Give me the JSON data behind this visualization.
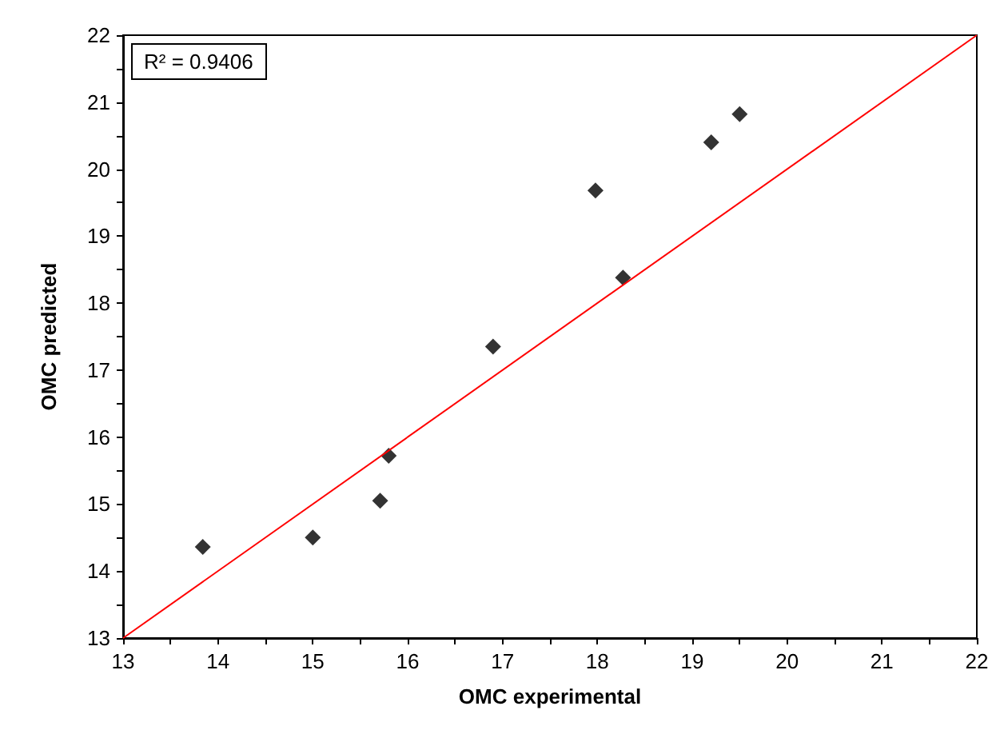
{
  "chart_data": {
    "type": "scatter",
    "xlabel": "OMC experimental",
    "ylabel": "OMC predicted",
    "annotations": [
      "R² = 0.9406"
    ],
    "xlim": [
      13,
      22
    ],
    "xticks": [
      13,
      14,
      15,
      16,
      17,
      18,
      19,
      20,
      21,
      22
    ],
    "ylim": [
      13,
      22
    ],
    "yticks": [
      13,
      14,
      15,
      16,
      17,
      18,
      19,
      20,
      21,
      22
    ],
    "grid": false,
    "marker": "diamond",
    "series": [
      {
        "color": "#000000",
        "x": [
          13.84,
          15.0,
          15.71,
          15.8,
          16.9,
          17.98,
          18.27,
          19.2,
          19.5
        ],
        "values": [
          14.36,
          14.5,
          15.05,
          15.72,
          17.35,
          19.68,
          18.38,
          20.4,
          20.82
        ]
      },
      {
        "type": "line",
        "color": "#ff0000",
        "marker": "none",
        "x": [
          13,
          22
        ],
        "values": [
          13,
          22
        ]
      }
    ]
  }
}
